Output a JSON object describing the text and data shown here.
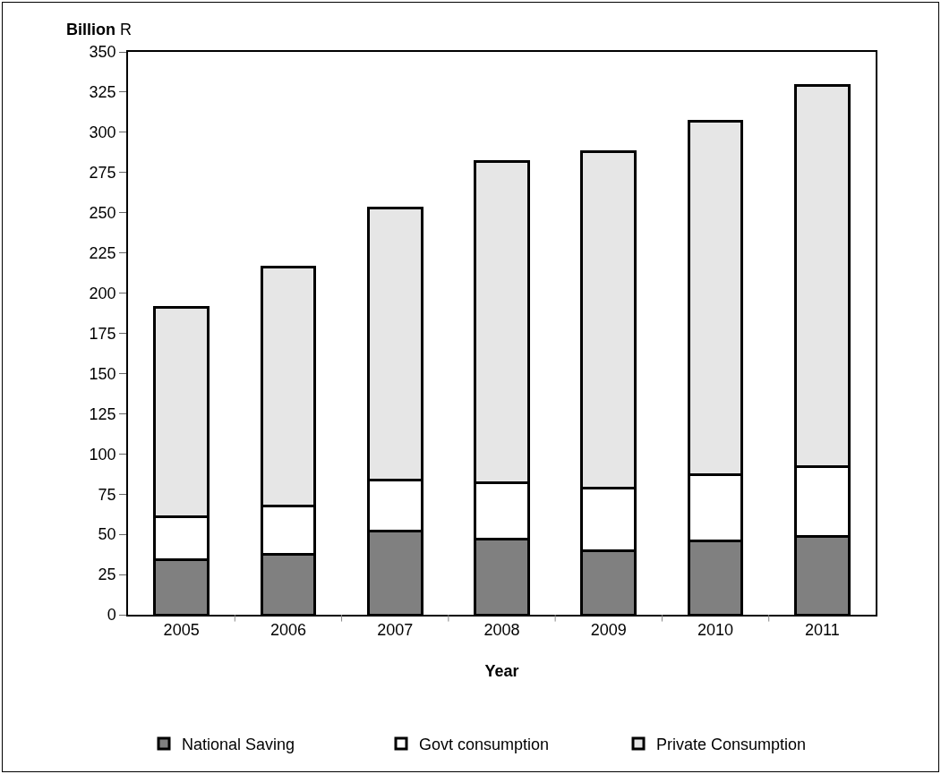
{
  "chart_data": {
    "type": "bar",
    "stacked": true,
    "xlabel": "Year",
    "ylabel": "Billion R",
    "categories": [
      "2005",
      "2006",
      "2007",
      "2008",
      "2009",
      "2010",
      "2011"
    ],
    "series": [
      {
        "name": "National Saving",
        "color": "#808080",
        "values": [
          34,
          37.5,
          52,
          47,
          40,
          46,
          48.5
        ]
      },
      {
        "name": "Govt consumption",
        "color": "#ffffff",
        "values": [
          27,
          30,
          31.5,
          35,
          39,
          41,
          43.5
        ]
      },
      {
        "name": "Private Consumption",
        "color": "#e6e6e6",
        "values": [
          130,
          148.5,
          169.5,
          200,
          209,
          220,
          237
        ]
      }
    ],
    "ylim": [
      0,
      350
    ],
    "yticks": [
      0,
      25,
      50,
      75,
      100,
      125,
      150,
      175,
      200,
      225,
      250,
      275,
      300,
      325,
      350
    ],
    "grid": false,
    "legend": "bottom"
  }
}
